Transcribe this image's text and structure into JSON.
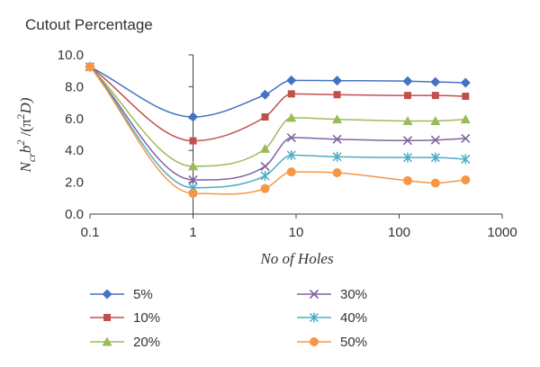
{
  "chart_data": {
    "type": "line",
    "title": "Cutout Percentage",
    "xlabel": "No of Holes",
    "ylabel_parts": {
      "n": "N",
      "cr": "cr",
      "b": "b",
      "exp": "2",
      "slash": " /(π",
      "exp2": "2",
      "d": "D)"
    },
    "xscale": "log",
    "xlim": [
      0.1,
      1000
    ],
    "ylim": [
      0,
      10
    ],
    "xticks": [
      0.1,
      1,
      10,
      100,
      1000
    ],
    "xtick_labels": [
      "0.1",
      "1",
      "10",
      "100",
      "1000"
    ],
    "yticks": [
      0,
      2,
      4,
      6,
      8,
      10
    ],
    "ytick_labels": [
      "0.0",
      "2.0",
      "4.0",
      "6.0",
      "8.0",
      "10.0"
    ],
    "grid": false,
    "legend_position": "bottom",
    "x": [
      0.1,
      1,
      5,
      9,
      25,
      121,
      225,
      441
    ],
    "series": [
      {
        "name": "5%",
        "color": "#4472c4",
        "marker": "diamond",
        "values": [
          9.25,
          6.1,
          7.5,
          8.4,
          8.38,
          8.35,
          8.3,
          8.25
        ]
      },
      {
        "name": "10%",
        "color": "#c0504d",
        "marker": "square",
        "values": [
          9.25,
          4.6,
          6.1,
          7.55,
          7.5,
          7.45,
          7.45,
          7.4
        ]
      },
      {
        "name": "20%",
        "color": "#9bbb59",
        "marker": "triangle",
        "values": [
          9.25,
          3.0,
          4.1,
          6.05,
          5.95,
          5.85,
          5.85,
          5.95
        ]
      },
      {
        "name": "30%",
        "color": "#8064a2",
        "marker": "x",
        "values": [
          9.25,
          2.15,
          3.0,
          4.8,
          4.7,
          4.62,
          4.65,
          4.75
        ]
      },
      {
        "name": "40%",
        "color": "#4bacc6",
        "marker": "star",
        "values": [
          9.25,
          1.65,
          2.4,
          3.7,
          3.6,
          3.55,
          3.55,
          3.45
        ]
      },
      {
        "name": "50%",
        "color": "#f79646",
        "marker": "circle",
        "values": [
          9.25,
          1.3,
          1.6,
          2.65,
          2.6,
          2.1,
          1.95,
          2.15
        ]
      }
    ]
  }
}
